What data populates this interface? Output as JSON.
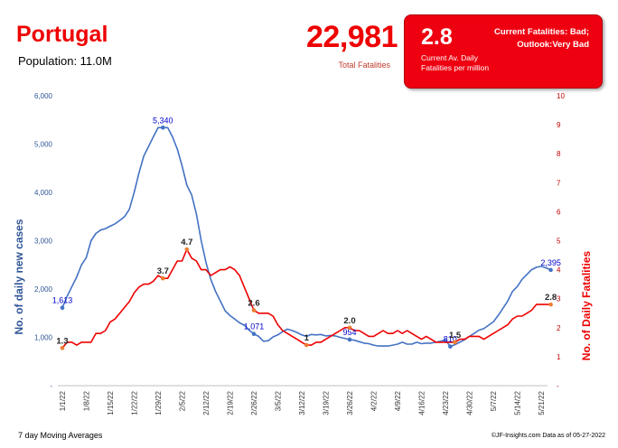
{
  "header": {
    "country": "Portugal",
    "population": "Population: 11.0M",
    "total_fatalities": "22,981",
    "total_fatalities_label": "Total Fatalities"
  },
  "fatality_box": {
    "value": "2.8",
    "label_line1": "Current Av. Daily",
    "label_line2": "Fatalities per million",
    "status_line1": "Current Fatalities: Bad;",
    "status_line2": "Outlook:Very Bad",
    "color": "#ee0010"
  },
  "footer": {
    "left": "7 day Moving Averages",
    "right": "©JF-Insights.com  Data as of 05-27-2022"
  },
  "chart_data": {
    "type": "line",
    "x_tick_labels": [
      "1/1/22",
      "1/8/22",
      "1/15/22",
      "1/22/22",
      "1/29/22",
      "2/5/22",
      "2/12/22",
      "2/19/22",
      "2/26/22",
      "3/5/22",
      "3/12/22",
      "3/19/22",
      "3/26/22",
      "4/2/22",
      "4/9/22",
      "4/16/22",
      "4/23/22",
      "4/30/22",
      "5/7/22",
      "5/14/22",
      "5/21/22"
    ],
    "xlabel": "",
    "ylabel_left": "No. of daily new  cases",
    "ylabel_right": "No. of Daily Fatalities",
    "ylim_left": [
      0,
      6000
    ],
    "ylim_right": [
      0,
      10
    ],
    "y_left_ticks": [
      "-",
      "1,000",
      "2,000",
      "3,000",
      "4,000",
      "5,000",
      "6,000"
    ],
    "y_right_ticks": [
      "-",
      "1",
      "2",
      "3",
      "4",
      "5",
      "6",
      "7",
      "8",
      "9",
      "10"
    ],
    "colors": {
      "cases": "#4472c4",
      "fatalities": "#ee0000",
      "cases_label": "#0000cc",
      "fatality_label": "#222222",
      "fatality_marker": "#ed7d31"
    },
    "series": [
      {
        "axis": "left",
        "values": [
          1613,
          1850,
          2050,
          2250,
          2500,
          2650,
          3000,
          3150,
          3220,
          3250,
          3300,
          3350,
          3420,
          3500,
          3650,
          4000,
          4400,
          4750,
          4950,
          5150,
          5340,
          5340,
          5340,
          5150,
          4900,
          4550,
          4150,
          3950,
          3550,
          3000,
          2550,
          2200,
          1950,
          1750,
          1550,
          1450,
          1380,
          1300,
          1250,
          1150,
          1071,
          1020,
          920,
          930,
          1010,
          1050,
          1120,
          1170,
          1140,
          1100,
          1050,
          1020,
          1060,
          1050,
          1060,
          1030,
          1040,
          1030,
          1000,
          980,
          954,
          940,
          910,
          880,
          870,
          840,
          820,
          820,
          820,
          840,
          860,
          900,
          860,
          860,
          900,
          870,
          880,
          880,
          900,
          920,
          950,
          810,
          850,
          900,
          950,
          1020,
          1080,
          1150,
          1180,
          1250,
          1320,
          1450,
          1600,
          1750,
          1950,
          2050,
          2200,
          2300,
          2400,
          2450,
          2470,
          2440,
          2395
        ]
      },
      {
        "axis": "right",
        "values": [
          1.3,
          1.5,
          1.5,
          1.4,
          1.5,
          1.5,
          1.5,
          1.8,
          1.8,
          1.9,
          2.2,
          2.3,
          2.5,
          2.7,
          2.9,
          3.2,
          3.4,
          3.5,
          3.5,
          3.6,
          3.8,
          3.7,
          3.7,
          4.0,
          4.3,
          4.3,
          4.7,
          4.4,
          4.3,
          4.0,
          4.0,
          3.8,
          3.9,
          4.0,
          4.0,
          4.1,
          4.0,
          3.8,
          3.4,
          3.0,
          2.6,
          2.5,
          2.5,
          2.5,
          2.4,
          2.1,
          1.9,
          1.8,
          1.7,
          1.6,
          1.5,
          1.4,
          1.4,
          1.5,
          1.5,
          1.6,
          1.7,
          1.8,
          1.9,
          2.0,
          2.0,
          1.9,
          1.9,
          1.8,
          1.7,
          1.7,
          1.8,
          1.9,
          1.8,
          1.8,
          1.9,
          1.8,
          1.9,
          1.8,
          1.7,
          1.6,
          1.7,
          1.6,
          1.5,
          1.5,
          1.5,
          1.5,
          1.5,
          1.6,
          1.6,
          1.7,
          1.7,
          1.7,
          1.6,
          1.7,
          1.8,
          1.9,
          2.0,
          2.1,
          2.3,
          2.4,
          2.4,
          2.5,
          2.6,
          2.8,
          2.8,
          2.8,
          2.8
        ]
      }
    ],
    "annotations": [
      {
        "series": 0,
        "index": 0,
        "label": "1,613"
      },
      {
        "series": 0,
        "index": 21,
        "label": "5,340"
      },
      {
        "series": 0,
        "index": 40,
        "label": "1,071"
      },
      {
        "series": 0,
        "index": 60,
        "label": "954"
      },
      {
        "series": 0,
        "index": 81,
        "label": "810"
      },
      {
        "series": 0,
        "index": 102,
        "label": "2,395"
      },
      {
        "series": 1,
        "index": 0,
        "label": "1.3"
      },
      {
        "series": 1,
        "index": 21,
        "label": "3.7"
      },
      {
        "series": 1,
        "index": 26,
        "label": "4.7"
      },
      {
        "series": 1,
        "index": 40,
        "label": "2.6"
      },
      {
        "series": 1,
        "index": 51,
        "label": "1"
      },
      {
        "series": 1,
        "index": 60,
        "label": "2.0"
      },
      {
        "series": 1,
        "index": 82,
        "label": "1.5"
      },
      {
        "series": 1,
        "index": 102,
        "label": "2.8"
      }
    ]
  }
}
